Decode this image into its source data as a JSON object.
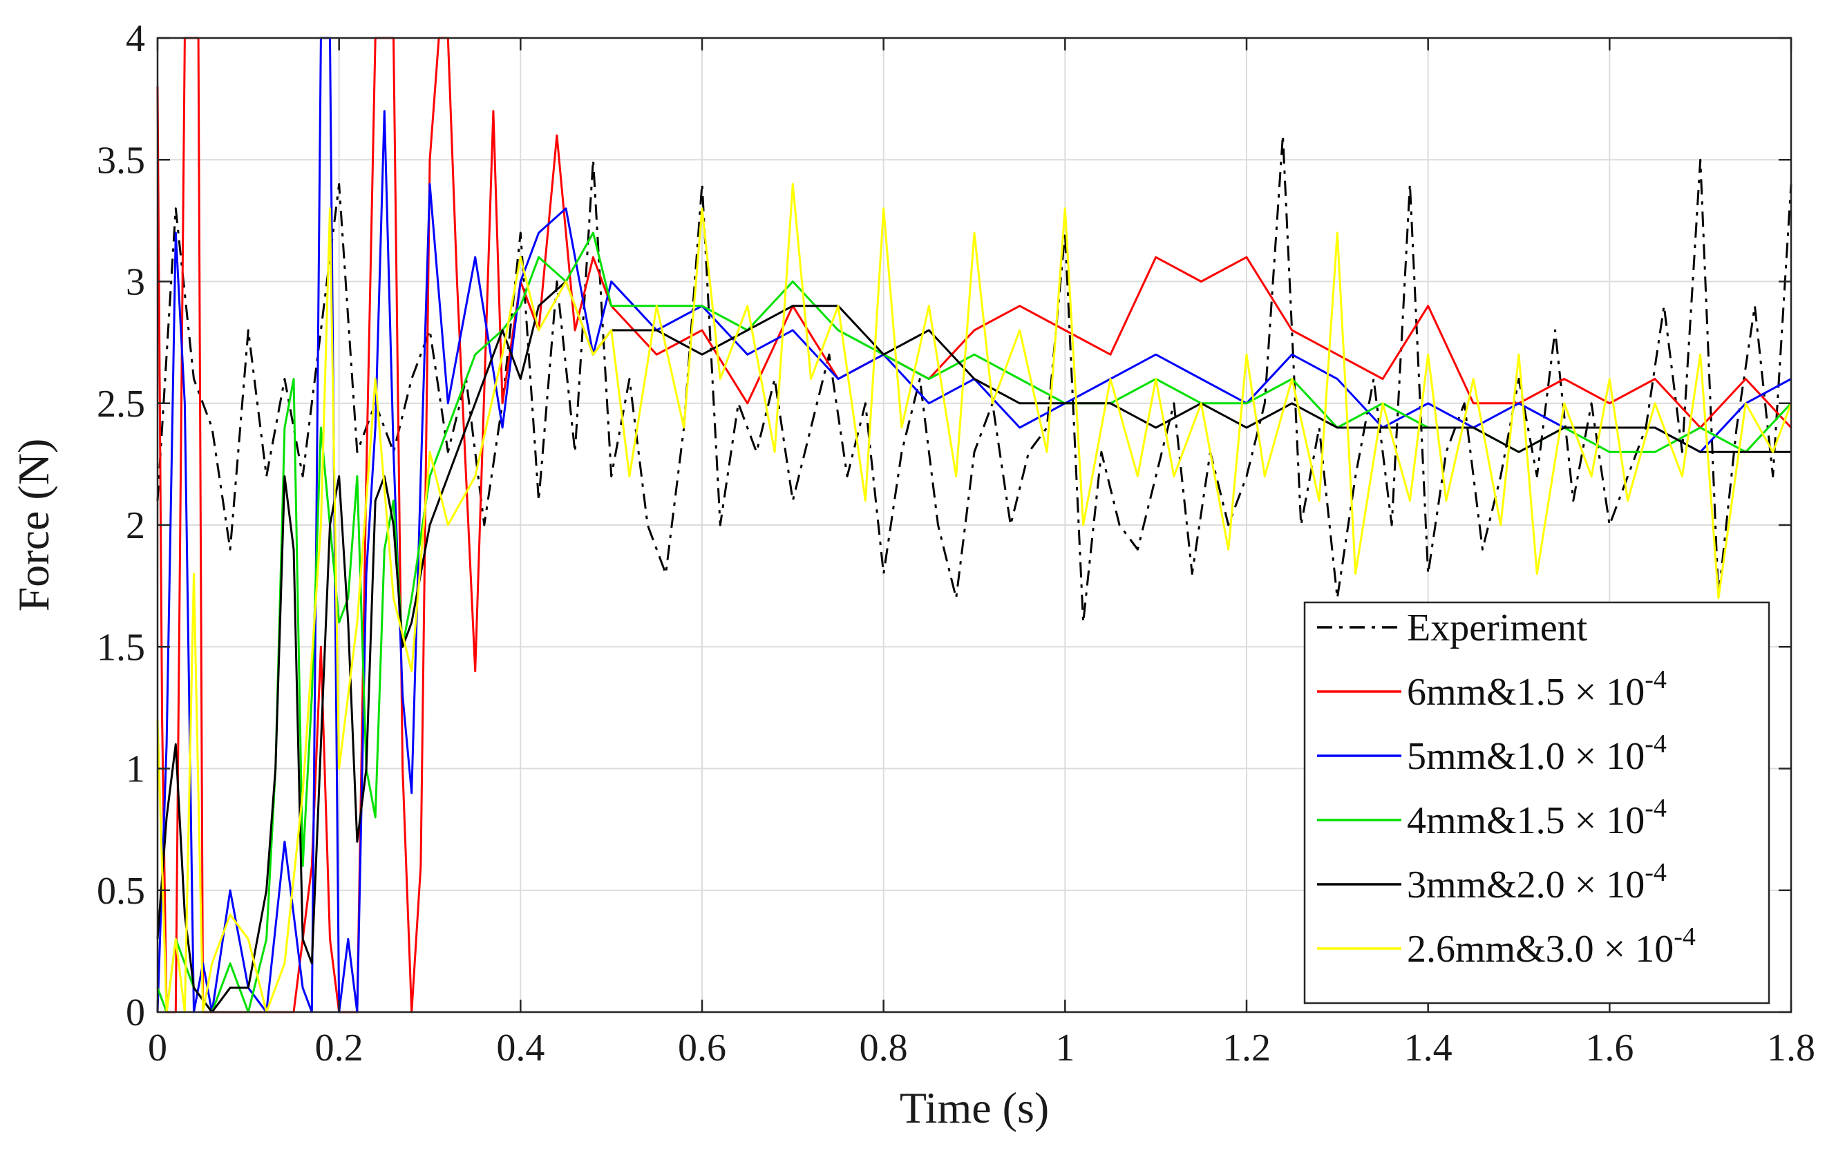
{
  "chart_data": {
    "type": "line",
    "title": "",
    "xlabel": "Time (s)",
    "ylabel": "Force (N)",
    "xlim": [
      0,
      1.8
    ],
    "ylim": [
      0,
      4
    ],
    "xticks": [
      0,
      0.2,
      0.4,
      0.6,
      0.8,
      1.0,
      1.2,
      1.4,
      1.6,
      1.8
    ],
    "xtick_labels": [
      "0",
      "0.2",
      "0.4",
      "0.6",
      "0.8",
      "1",
      "1.2",
      "1.4",
      "1.6",
      "1.8"
    ],
    "yticks": [
      0,
      0.5,
      1,
      1.5,
      2,
      2.5,
      3,
      3.5,
      4
    ],
    "ytick_labels": [
      "0",
      "0.5",
      "1",
      "1.5",
      "2",
      "2.5",
      "3",
      "3.5",
      "4"
    ],
    "grid": true,
    "legend_position": "bottom-right",
    "series": [
      {
        "name": "Experiment",
        "label_main": "Experiment",
        "label_exp": "",
        "color": "#000000",
        "dash": "dash-dot",
        "x": [
          0,
          0.02,
          0.04,
          0.06,
          0.08,
          0.1,
          0.12,
          0.14,
          0.16,
          0.18,
          0.2,
          0.22,
          0.24,
          0.26,
          0.28,
          0.3,
          0.32,
          0.34,
          0.36,
          0.38,
          0.4,
          0.42,
          0.44,
          0.46,
          0.48,
          0.5,
          0.52,
          0.54,
          0.56,
          0.58,
          0.6,
          0.62,
          0.64,
          0.66,
          0.68,
          0.7,
          0.72,
          0.74,
          0.76,
          0.78,
          0.8,
          0.82,
          0.84,
          0.86,
          0.88,
          0.9,
          0.92,
          0.94,
          0.96,
          0.98,
          1.0,
          1.02,
          1.04,
          1.06,
          1.08,
          1.1,
          1.12,
          1.14,
          1.16,
          1.18,
          1.2,
          1.22,
          1.24,
          1.26,
          1.28,
          1.3,
          1.32,
          1.34,
          1.36,
          1.38,
          1.4,
          1.42,
          1.44,
          1.46,
          1.48,
          1.5,
          1.52,
          1.54,
          1.56,
          1.58,
          1.6,
          1.62,
          1.64,
          1.66,
          1.68,
          1.7,
          1.72,
          1.74,
          1.76,
          1.78,
          1.8
        ],
        "y": [
          2.1,
          3.3,
          2.6,
          2.4,
          1.9,
          2.8,
          2.2,
          2.6,
          2.2,
          2.8,
          3.4,
          2.3,
          2.5,
          2.3,
          2.6,
          2.8,
          2.3,
          2.6,
          2.0,
          2.5,
          3.2,
          2.1,
          3.0,
          2.3,
          3.5,
          2.2,
          2.6,
          2.0,
          1.8,
          2.4,
          3.4,
          2.0,
          2.5,
          2.3,
          2.6,
          2.1,
          2.4,
          2.7,
          2.2,
          2.5,
          1.8,
          2.3,
          2.6,
          2.0,
          1.7,
          2.3,
          2.5,
          2.0,
          2.3,
          2.4,
          3.2,
          1.6,
          2.3,
          2.0,
          1.9,
          2.2,
          2.5,
          1.8,
          2.3,
          2.0,
          2.2,
          2.5,
          3.6,
          2.0,
          2.4,
          1.7,
          2.2,
          2.6,
          2.0,
          3.4,
          1.8,
          2.3,
          2.5,
          1.9,
          2.2,
          2.6,
          2.2,
          2.8,
          2.1,
          2.5,
          2.0,
          2.2,
          2.4,
          2.9,
          2.3,
          3.5,
          1.7,
          2.4,
          2.9,
          2.2,
          3.4
        ]
      },
      {
        "name": "6mm&1.5 × 10-4",
        "label_main": "6mm&1.5 × 10",
        "label_exp": "-4",
        "color": "#ff0000",
        "dash": "solid",
        "x": [
          0,
          0.005,
          0.01,
          0.02,
          0.03,
          0.04,
          0.045,
          0.05,
          0.06,
          0.08,
          0.1,
          0.12,
          0.15,
          0.17,
          0.18,
          0.19,
          0.2,
          0.21,
          0.22,
          0.23,
          0.24,
          0.25,
          0.26,
          0.27,
          0.28,
          0.29,
          0.3,
          0.31,
          0.32,
          0.33,
          0.34,
          0.35,
          0.37,
          0.38,
          0.4,
          0.42,
          0.44,
          0.46,
          0.48,
          0.5,
          0.55,
          0.6,
          0.65,
          0.7,
          0.75,
          0.8,
          0.85,
          0.9,
          0.95,
          1.0,
          1.05,
          1.1,
          1.15,
          1.2,
          1.25,
          1.3,
          1.35,
          1.4,
          1.45,
          1.5,
          1.55,
          1.6,
          1.65,
          1.7,
          1.75,
          1.8
        ],
        "y": [
          3.8,
          1.2,
          0.0,
          0.0,
          4.0,
          4.0,
          4.0,
          0.0,
          0.0,
          0.0,
          0.0,
          0.0,
          0.0,
          0.6,
          1.5,
          0.3,
          0.0,
          0.0,
          0.0,
          2.2,
          4.0,
          4.0,
          4.0,
          1.0,
          0.0,
          0.6,
          3.5,
          4.0,
          4.0,
          3.0,
          2.2,
          1.4,
          3.7,
          2.5,
          3.0,
          2.8,
          3.6,
          2.8,
          3.1,
          2.9,
          2.7,
          2.8,
          2.5,
          2.9,
          2.6,
          2.7,
          2.6,
          2.8,
          2.9,
          2.8,
          2.7,
          3.1,
          3.0,
          3.1,
          2.8,
          2.7,
          2.6,
          2.9,
          2.5,
          2.5,
          2.6,
          2.5,
          2.6,
          2.4,
          2.6,
          2.4
        ]
      },
      {
        "name": "5mm&1.0 × 10-4",
        "label_main": "5mm&1.0 × 10",
        "label_exp": "-4",
        "color": "#0000ff",
        "dash": "solid",
        "x": [
          0,
          0.01,
          0.02,
          0.03,
          0.04,
          0.05,
          0.06,
          0.08,
          0.1,
          0.12,
          0.14,
          0.16,
          0.17,
          0.18,
          0.19,
          0.2,
          0.21,
          0.22,
          0.23,
          0.24,
          0.25,
          0.26,
          0.27,
          0.28,
          0.29,
          0.3,
          0.32,
          0.35,
          0.38,
          0.4,
          0.42,
          0.45,
          0.48,
          0.5,
          0.55,
          0.6,
          0.65,
          0.7,
          0.75,
          0.8,
          0.85,
          0.9,
          0.95,
          1.0,
          1.05,
          1.1,
          1.15,
          1.2,
          1.25,
          1.3,
          1.35,
          1.4,
          1.45,
          1.5,
          1.55,
          1.6,
          1.65,
          1.7,
          1.75,
          1.8
        ],
        "y": [
          0.0,
          1.1,
          3.2,
          2.5,
          0.0,
          0.2,
          0.0,
          0.5,
          0.1,
          0.0,
          0.7,
          0.1,
          0.0,
          4.0,
          4.0,
          0.0,
          0.3,
          0.0,
          1.8,
          2.4,
          3.7,
          2.3,
          1.3,
          0.9,
          2.2,
          3.4,
          2.5,
          3.1,
          2.4,
          3.0,
          3.2,
          3.3,
          2.7,
          3.0,
          2.8,
          2.9,
          2.7,
          2.8,
          2.6,
          2.7,
          2.5,
          2.6,
          2.4,
          2.5,
          2.6,
          2.7,
          2.6,
          2.5,
          2.7,
          2.6,
          2.4,
          2.5,
          2.4,
          2.5,
          2.4,
          2.4,
          2.4,
          2.3,
          2.5,
          2.6
        ]
      },
      {
        "name": "4mm&1.5 × 10-4",
        "label_main": "4mm&1.5 × 10",
        "label_exp": "-4",
        "color": "#00e000",
        "dash": "solid",
        "x": [
          0,
          0.01,
          0.02,
          0.04,
          0.06,
          0.08,
          0.1,
          0.12,
          0.13,
          0.14,
          0.15,
          0.16,
          0.17,
          0.18,
          0.19,
          0.2,
          0.21,
          0.22,
          0.23,
          0.24,
          0.25,
          0.26,
          0.27,
          0.28,
          0.3,
          0.32,
          0.35,
          0.38,
          0.4,
          0.42,
          0.45,
          0.48,
          0.5,
          0.55,
          0.6,
          0.65,
          0.7,
          0.75,
          0.8,
          0.85,
          0.9,
          0.95,
          1.0,
          1.05,
          1.1,
          1.15,
          1.2,
          1.25,
          1.3,
          1.35,
          1.4,
          1.45,
          1.5,
          1.55,
          1.6,
          1.65,
          1.7,
          1.75,
          1.8
        ],
        "y": [
          0.1,
          0.0,
          0.3,
          0.1,
          0.0,
          0.2,
          0.0,
          0.3,
          1.0,
          2.4,
          2.6,
          0.6,
          1.3,
          2.4,
          2.0,
          1.6,
          1.7,
          2.2,
          1.0,
          0.8,
          1.9,
          2.1,
          1.5,
          1.7,
          2.2,
          2.4,
          2.7,
          2.8,
          2.9,
          3.1,
          3.0,
          3.2,
          2.9,
          2.9,
          2.9,
          2.8,
          3.0,
          2.8,
          2.7,
          2.6,
          2.7,
          2.6,
          2.5,
          2.5,
          2.6,
          2.5,
          2.5,
          2.6,
          2.4,
          2.5,
          2.4,
          2.4,
          2.3,
          2.4,
          2.3,
          2.3,
          2.4,
          2.3,
          2.5
        ]
      },
      {
        "name": "3mm&2.0 × 10-4",
        "label_main": "3mm&2.0 × 10",
        "label_exp": "-4",
        "color": "#000000",
        "dash": "solid",
        "x": [
          0,
          0.01,
          0.02,
          0.03,
          0.04,
          0.06,
          0.08,
          0.1,
          0.12,
          0.13,
          0.14,
          0.15,
          0.16,
          0.17,
          0.18,
          0.19,
          0.2,
          0.21,
          0.22,
          0.23,
          0.24,
          0.25,
          0.26,
          0.27,
          0.28,
          0.3,
          0.32,
          0.35,
          0.38,
          0.4,
          0.42,
          0.45,
          0.48,
          0.5,
          0.55,
          0.6,
          0.65,
          0.7,
          0.75,
          0.8,
          0.85,
          0.9,
          0.95,
          1.0,
          1.05,
          1.1,
          1.15,
          1.2,
          1.25,
          1.3,
          1.35,
          1.4,
          1.45,
          1.5,
          1.55,
          1.6,
          1.65,
          1.7,
          1.75,
          1.8
        ],
        "y": [
          0.3,
          0.8,
          1.1,
          0.4,
          0.1,
          0.0,
          0.1,
          0.1,
          0.5,
          1.0,
          2.2,
          1.9,
          0.3,
          0.2,
          1.1,
          2.0,
          2.2,
          1.6,
          0.7,
          1.0,
          2.1,
          2.2,
          2.0,
          1.5,
          1.6,
          2.0,
          2.2,
          2.5,
          2.8,
          2.6,
          2.9,
          3.0,
          2.7,
          2.8,
          2.8,
          2.7,
          2.8,
          2.9,
          2.9,
          2.7,
          2.8,
          2.6,
          2.5,
          2.5,
          2.5,
          2.4,
          2.5,
          2.4,
          2.5,
          2.4,
          2.4,
          2.4,
          2.4,
          2.3,
          2.4,
          2.4,
          2.4,
          2.3,
          2.3,
          2.3
        ]
      },
      {
        "name": "2.6mm&3.0 × 10-4",
        "label_main": "2.6mm&3.0 × 10",
        "label_exp": "-4",
        "color": "#ffff00",
        "dash": "solid",
        "x": [
          0,
          0.01,
          0.02,
          0.03,
          0.04,
          0.05,
          0.06,
          0.08,
          0.1,
          0.12,
          0.14,
          0.16,
          0.18,
          0.19,
          0.2,
          0.22,
          0.24,
          0.26,
          0.28,
          0.3,
          0.32,
          0.35,
          0.38,
          0.4,
          0.42,
          0.45,
          0.48,
          0.5,
          0.52,
          0.55,
          0.58,
          0.6,
          0.62,
          0.65,
          0.68,
          0.7,
          0.72,
          0.75,
          0.78,
          0.8,
          0.82,
          0.85,
          0.88,
          0.9,
          0.92,
          0.95,
          0.98,
          1.0,
          1.02,
          1.05,
          1.08,
          1.1,
          1.12,
          1.15,
          1.18,
          1.2,
          1.22,
          1.25,
          1.28,
          1.3,
          1.32,
          1.35,
          1.38,
          1.4,
          1.42,
          1.45,
          1.48,
          1.5,
          1.52,
          1.55,
          1.58,
          1.6,
          1.62,
          1.65,
          1.68,
          1.7,
          1.72,
          1.75,
          1.78,
          1.8
        ],
        "y": [
          1.2,
          0.0,
          0.3,
          0.0,
          1.8,
          0.0,
          0.2,
          0.4,
          0.3,
          0.0,
          0.2,
          0.9,
          2.0,
          3.3,
          1.0,
          1.6,
          2.6,
          1.7,
          1.4,
          2.3,
          2.0,
          2.2,
          2.7,
          3.1,
          2.8,
          3.0,
          2.7,
          2.8,
          2.2,
          2.9,
          2.4,
          3.3,
          2.6,
          2.9,
          2.3,
          3.4,
          2.6,
          2.9,
          2.1,
          3.3,
          2.4,
          2.9,
          2.2,
          3.2,
          2.5,
          2.8,
          2.3,
          3.3,
          2.0,
          2.6,
          2.2,
          2.6,
          2.2,
          2.5,
          1.9,
          2.7,
          2.2,
          2.6,
          2.1,
          3.2,
          1.8,
          2.5,
          2.1,
          2.7,
          2.1,
          2.6,
          2.0,
          2.7,
          1.8,
          2.5,
          2.2,
          2.6,
          2.1,
          2.5,
          2.2,
          2.7,
          1.7,
          2.5,
          2.3,
          2.5
        ]
      }
    ]
  }
}
